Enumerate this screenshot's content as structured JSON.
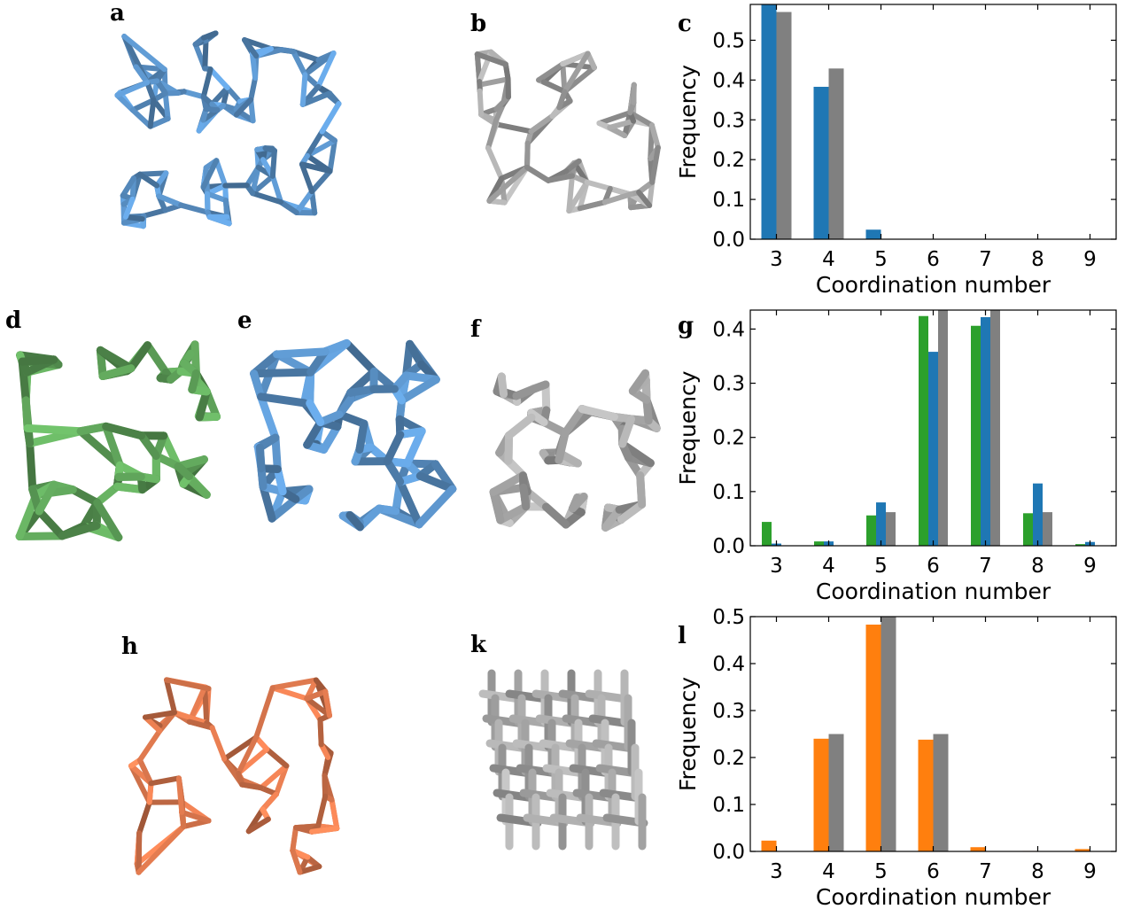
{
  "colors": {
    "blue": "#1f77b4",
    "gray": "#808080",
    "green": "#2ca02c",
    "orange": "#ff7f0e",
    "blue_structure": "#5b93c9",
    "green_structure": "#5fa35a",
    "orange_structure": "#e07a4f",
    "gray_structure": "#a8a8a8"
  },
  "panels": {
    "a": "a",
    "b": "b",
    "c": "c",
    "d": "d",
    "e": "e",
    "f": "f",
    "g": "g",
    "h": "h",
    "k": "k",
    "l": "l"
  },
  "structures": [
    {
      "panel": "a",
      "color": "blue_structure",
      "icon": "amorphous-network-blue"
    },
    {
      "panel": "b",
      "color": "gray_structure",
      "icon": "crystal-network-gray"
    },
    {
      "panel": "d",
      "color": "green_structure",
      "icon": "amorphous-network-green"
    },
    {
      "panel": "e",
      "color": "blue_structure",
      "icon": "amorphous-network-blue"
    },
    {
      "panel": "f",
      "color": "gray_structure",
      "icon": "crystal-network-gray"
    },
    {
      "panel": "h",
      "color": "orange_structure",
      "icon": "amorphous-network-orange"
    },
    {
      "panel": "k",
      "color": "gray_structure",
      "icon": "cubic-lattice-gray"
    }
  ],
  "chart_data": [
    {
      "type": "bar",
      "panel": "c",
      "categories": [
        "3",
        "4",
        "5",
        "6",
        "7",
        "8",
        "9"
      ],
      "xlabel": "Coordination number",
      "ylabel": "Frequency",
      "ylim": [
        0,
        0.59
      ],
      "yticks": [
        "0.0",
        "0.1",
        "0.2",
        "0.3",
        "0.4",
        "0.5"
      ],
      "series": [
        {
          "color": "blue",
          "values": [
            0.593,
            0.383,
            0.024,
            0.001,
            0.0005,
            0.0003,
            0.0002
          ]
        },
        {
          "color": "gray",
          "values": [
            0.571,
            0.429,
            0,
            0,
            0,
            0,
            0
          ]
        }
      ]
    },
    {
      "type": "bar",
      "panel": "g",
      "categories": [
        "3",
        "4",
        "5",
        "6",
        "7",
        "8",
        "9"
      ],
      "xlabel": "Coordination number",
      "ylabel": "Frequency",
      "ylim": [
        0,
        0.435
      ],
      "yticks": [
        "0.0",
        "0.1",
        "0.2",
        "0.3",
        "0.4"
      ],
      "series": [
        {
          "color": "green",
          "values": [
            0.044,
            0.008,
            0.056,
            0.424,
            0.406,
            0.06,
            0.003
          ]
        },
        {
          "color": "blue",
          "values": [
            0.004,
            0.008,
            0.08,
            0.358,
            0.422,
            0.115,
            0.007
          ]
        },
        {
          "color": "gray",
          "values": [
            0,
            0,
            0.062,
            0.44,
            0.44,
            0.062,
            0
          ]
        }
      ]
    },
    {
      "type": "bar",
      "panel": "l",
      "categories": [
        "3",
        "4",
        "5",
        "6",
        "7",
        "8",
        "9"
      ],
      "xlabel": "Coordination number",
      "ylabel": "Frequency",
      "ylim": [
        0,
        0.5
      ],
      "yticks": [
        "0.0",
        "0.1",
        "0.2",
        "0.3",
        "0.4",
        "0.5"
      ],
      "series": [
        {
          "color": "orange",
          "values": [
            0.023,
            0.24,
            0.483,
            0.238,
            0.009,
            0.001,
            0.005
          ]
        },
        {
          "color": "gray",
          "values": [
            0,
            0.25,
            0.5,
            0.25,
            0,
            0,
            0
          ]
        }
      ]
    }
  ]
}
